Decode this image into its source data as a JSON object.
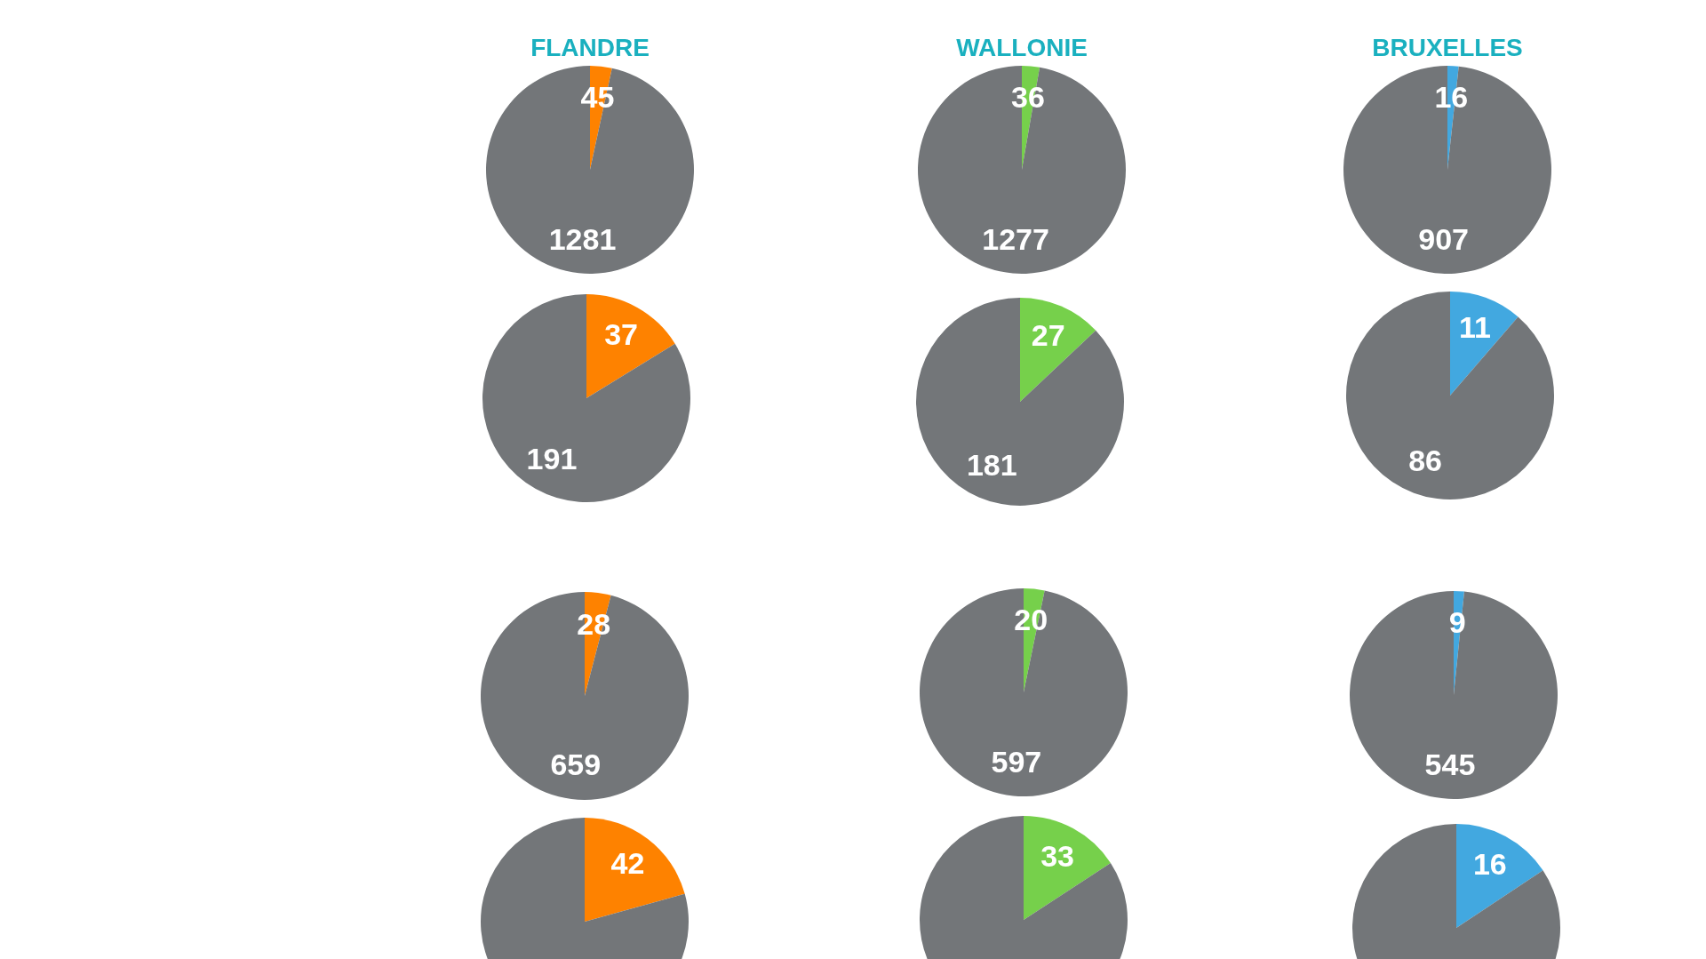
{
  "chart_data": [
    {
      "type": "pie",
      "title": "FLANDRE",
      "categories": [
        null,
        null
      ],
      "values": [
        45,
        1281
      ],
      "colors": [
        "#fe8200",
        "#737679"
      ],
      "data_labels": true
    },
    {
      "type": "pie",
      "title": "WALLONIE",
      "categories": [
        null,
        null
      ],
      "values": [
        36,
        1277
      ],
      "colors": [
        "#76d04b",
        "#737679"
      ],
      "data_labels": true
    },
    {
      "type": "pie",
      "title": "BRUXELLES",
      "categories": [
        null,
        null
      ],
      "values": [
        16,
        907
      ],
      "colors": [
        "#42a8e0",
        "#737679"
      ],
      "data_labels": true
    },
    {
      "type": "pie",
      "categories": [
        null,
        null
      ],
      "values": [
        37,
        191
      ],
      "colors": [
        "#fe8200",
        "#737679"
      ],
      "data_labels": true
    },
    {
      "type": "pie",
      "categories": [
        null,
        null
      ],
      "values": [
        27,
        181
      ],
      "colors": [
        "#76d04b",
        "#737679"
      ],
      "data_labels": true
    },
    {
      "type": "pie",
      "categories": [
        null,
        null
      ],
      "values": [
        11,
        86
      ],
      "colors": [
        "#42a8e0",
        "#737679"
      ],
      "data_labels": true
    },
    {
      "type": "pie",
      "categories": [
        null,
        null
      ],
      "values": [
        28,
        659
      ],
      "colors": [
        "#fe8200",
        "#737679"
      ],
      "data_labels": true
    },
    {
      "type": "pie",
      "categories": [
        null,
        null
      ],
      "values": [
        20,
        597
      ],
      "colors": [
        "#76d04b",
        "#737679"
      ],
      "data_labels": true
    },
    {
      "type": "pie",
      "categories": [
        null,
        null
      ],
      "values": [
        9,
        545
      ],
      "colors": [
        "#42a8e0",
        "#737679"
      ],
      "data_labels": true
    },
    {
      "type": "pie",
      "categories": [
        null,
        null
      ],
      "values": [
        42,
        161
      ],
      "colors": [
        "#fe8200",
        "#737679"
      ],
      "value_labels": [
        "42",
        null
      ]
    },
    {
      "type": "pie",
      "categories": [
        null,
        null
      ],
      "values": [
        33,
        176
      ],
      "colors": [
        "#76d04b",
        "#737679"
      ],
      "value_labels": [
        "33",
        null
      ]
    },
    {
      "type": "pie",
      "categories": [
        null,
        null
      ],
      "values": [
        16,
        86
      ],
      "colors": [
        "#42a8e0",
        "#737679"
      ],
      "value_labels": [
        "16",
        null
      ]
    }
  ]
}
